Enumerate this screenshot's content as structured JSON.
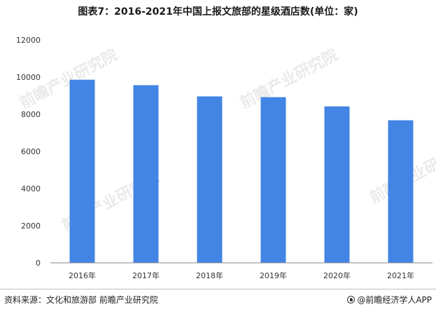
{
  "title": "图表7：2016-2021年中国上报文旅部的星级酒店数(单位：家)",
  "source": "资料来源：文化和旅游部 前瞻产业研究院",
  "brand": "@前瞻经济学人APP",
  "watermark": "前瞻产业研究院",
  "colors": {
    "bar": "#4285e4",
    "axis": "#888888",
    "grid": "#e6e6e6"
  },
  "chart_data": {
    "type": "bar",
    "title": "图表7：2016-2021年中国上报文旅部的星级酒店数(单位：家)",
    "categories": [
      "2016年",
      "2017年",
      "2018年",
      "2019年",
      "2020年",
      "2021年"
    ],
    "values": [
      9860,
      9566,
      8962,
      8920,
      8423,
      7676
    ],
    "ylim": [
      0,
      12000
    ],
    "yticks": [
      "0",
      "2000",
      "4000",
      "6000",
      "8000",
      "10000",
      "12000"
    ],
    "xlabel": "",
    "ylabel": "",
    "grid": false,
    "legend": "none"
  }
}
